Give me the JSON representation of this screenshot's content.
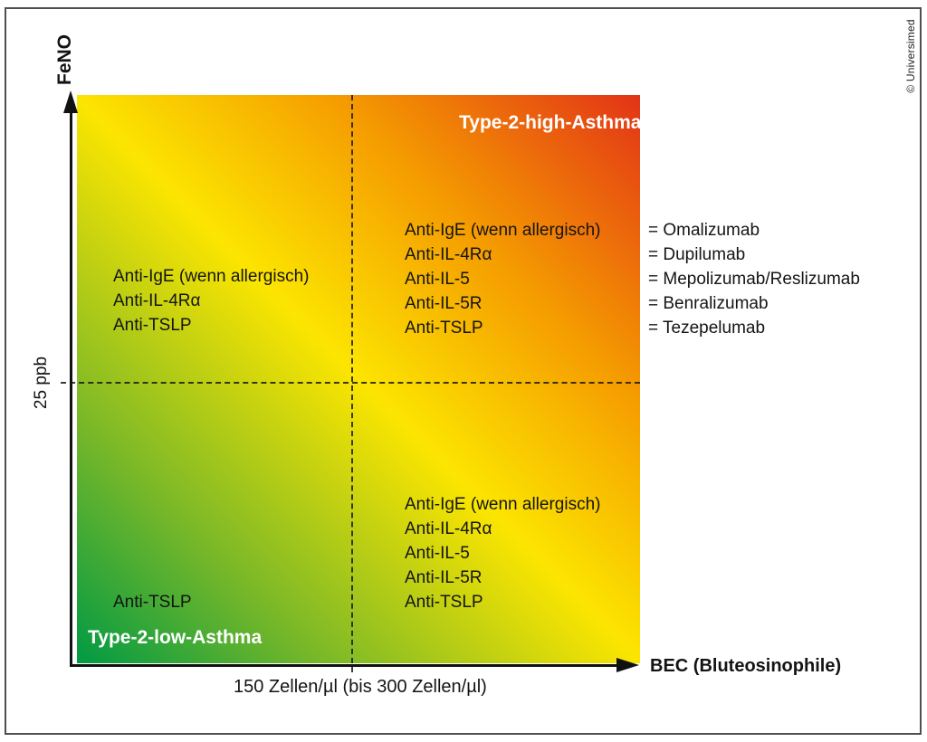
{
  "meta": {
    "copyright": "© Universimed"
  },
  "axes": {
    "y_label": "FeNO",
    "y_tick": "25 ppb",
    "x_label": "BEC (Bluteosinophile)",
    "x_tick": "150 Zellen/µl (bis 300 Zellen/µl)"
  },
  "zones": {
    "high_label": "Type-2-high-Asthma",
    "low_label": "Type-2-low-Asthma"
  },
  "quadrants": {
    "upper_left": [
      "Anti-IgE (wenn allergisch)",
      "Anti-IL-4Rα",
      "Anti-TSLP"
    ],
    "upper_right": [
      "Anti-IgE (wenn allergisch)",
      "Anti-IL-4Rα",
      "Anti-IL-5",
      "Anti-IL-5R",
      "Anti-TSLP"
    ],
    "lower_right": [
      "Anti-IgE (wenn allergisch)",
      "Anti-IL-4Rα",
      "Anti-IL-5",
      "Anti-IL-5R",
      "Anti-TSLP"
    ],
    "lower_left": [
      "Anti-TSLP"
    ]
  },
  "legend": [
    "= Omalizumab",
    "= Dupilumab",
    "= Mepolizumab/Reslizumab",
    "= Benralizumab",
    "= Tezepelumab"
  ],
  "colors": {
    "green": "#009a44",
    "yellow_green": "#7ab828",
    "yellow": "#fce500",
    "orange": "#f59c00",
    "red": "#e23317"
  },
  "chart_data": {
    "type": "heatmap",
    "title": "",
    "xlabel": "BEC (Bluteosinophile)",
    "ylabel": "FeNO",
    "x_threshold_label": "150 Zellen/µl (bis 300 Zellen/µl)",
    "y_threshold_label": "25 ppb",
    "gradient": "green (low/low) to red (high/high) via yellow diagonal",
    "quadrant_therapies": {
      "low_BEC_high_FeNO": [
        "Anti-IgE (wenn allergisch)",
        "Anti-IL-4Rα",
        "Anti-TSLP"
      ],
      "high_BEC_high_FeNO": [
        "Anti-IgE (wenn allergisch)",
        "Anti-IL-4Rα",
        "Anti-IL-5",
        "Anti-IL-5R",
        "Anti-TSLP"
      ],
      "high_BEC_low_FeNO": [
        "Anti-IgE (wenn allergisch)",
        "Anti-IL-4Rα",
        "Anti-IL-5",
        "Anti-IL-5R",
        "Anti-TSLP"
      ],
      "low_BEC_low_FeNO": [
        "Anti-TSLP"
      ]
    },
    "annotations": [
      "Type-2-high-Asthma",
      "Type-2-low-Asthma"
    ],
    "legend_entries": [
      "= Omalizumab",
      "= Dupilumab",
      "= Mepolizumab/Reslizumab",
      "= Benralizumab",
      "= Tezepelumab"
    ]
  }
}
